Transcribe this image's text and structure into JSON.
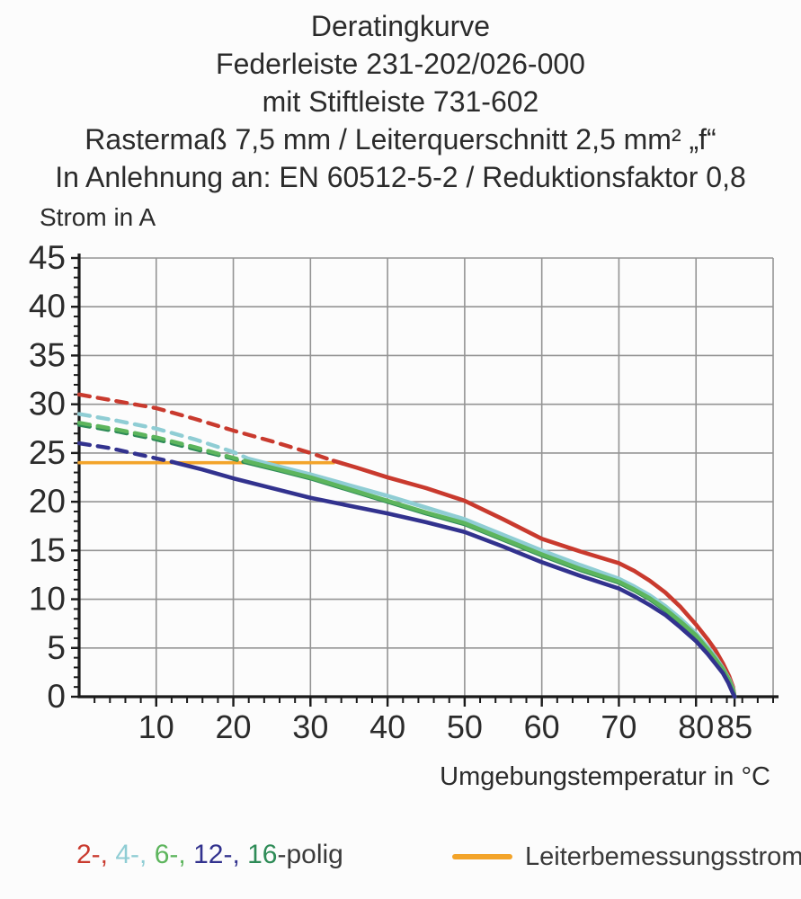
{
  "title_lines": [
    "Deratingkurve",
    "Federleiste 231-202/026-000",
    "mit Stiftleiste 731-602",
    "Rastermaß 7,5 mm / Leiterquerschnitt 2,5 mm² „f“",
    "In Anlehnung an: EN 60512-5-2 / Reduktionsfaktor 0,8"
  ],
  "chart_data": {
    "type": "line",
    "title": "Deratingkurve",
    "xlabel": "Umgebungstemperatur in °C",
    "ylabel": "Strom in A",
    "xlim": [
      0,
      90
    ],
    "ylim": [
      0,
      45
    ],
    "grid": true,
    "x_gridlines": [
      10,
      20,
      30,
      40,
      50,
      60,
      70,
      80,
      90
    ],
    "y_gridlines": [
      5,
      10,
      15,
      20,
      25,
      30,
      35,
      40,
      45
    ],
    "x_tick_labels": [
      10,
      20,
      30,
      40,
      50,
      60,
      70,
      80,
      85
    ],
    "y_tick_labels": [
      0,
      5,
      10,
      15,
      20,
      25,
      30,
      35,
      40,
      45
    ],
    "x_minor_step": 2,
    "y_minor_step": 1,
    "reference_line": {
      "name": "Leiterbemessungsstrom",
      "color": "#f3a42a",
      "y": 24,
      "x_start": 0,
      "x_end": 33
    },
    "series": [
      {
        "name": "2-polig",
        "color": "#c93a2e",
        "dashed": [
          [
            0,
            31
          ],
          [
            5,
            30.3
          ],
          [
            10,
            29.6
          ],
          [
            15,
            28.5
          ],
          [
            20,
            27.3
          ],
          [
            25,
            26.2
          ],
          [
            30,
            25
          ],
          [
            33,
            24.2
          ]
        ],
        "solid": [
          [
            33,
            24.2
          ],
          [
            36,
            23.5
          ],
          [
            40,
            22.5
          ],
          [
            45,
            21.4
          ],
          [
            50,
            20.1
          ],
          [
            55,
            18.2
          ],
          [
            60,
            16.2
          ],
          [
            65,
            14.9
          ],
          [
            70,
            13.7
          ],
          [
            72,
            12.9
          ],
          [
            74,
            11.9
          ],
          [
            76,
            10.7
          ],
          [
            78,
            9.2
          ],
          [
            80,
            7.4
          ],
          [
            81.5,
            5.9
          ],
          [
            82.5,
            4.8
          ],
          [
            83.5,
            3.4
          ],
          [
            84.3,
            2.1
          ],
          [
            84.8,
            1.0
          ],
          [
            85,
            0
          ]
        ]
      },
      {
        "name": "4-polig",
        "color": "#8fcdd4",
        "dashed": [
          [
            0,
            29
          ],
          [
            5,
            28.3
          ],
          [
            10,
            27.5
          ],
          [
            15,
            26.4
          ],
          [
            20,
            25.1
          ],
          [
            22,
            24.4
          ]
        ],
        "solid": [
          [
            22,
            24.4
          ],
          [
            26,
            23.6
          ],
          [
            30,
            22.8
          ],
          [
            35,
            21.7
          ],
          [
            40,
            20.6
          ],
          [
            45,
            19.4
          ],
          [
            50,
            18.2
          ],
          [
            55,
            16.6
          ],
          [
            60,
            15
          ],
          [
            65,
            13.5
          ],
          [
            70,
            12.1
          ],
          [
            72,
            11.3
          ],
          [
            74,
            10.4
          ],
          [
            76,
            9.3
          ],
          [
            78,
            8.0
          ],
          [
            80,
            6.5
          ],
          [
            81.5,
            5.1
          ],
          [
            82.5,
            4.1
          ],
          [
            83.5,
            2.9
          ],
          [
            84.3,
            1.8
          ],
          [
            84.8,
            0.8
          ],
          [
            85,
            0
          ]
        ]
      },
      {
        "name": "16-polig",
        "color": "#2e8b57",
        "dashed": [
          [
            0,
            27.9
          ],
          [
            5,
            27.2
          ],
          [
            10,
            26.4
          ],
          [
            15,
            25.4
          ],
          [
            20,
            24.4
          ],
          [
            21.3,
            24.1
          ]
        ],
        "solid": [
          [
            21.3,
            24.1
          ],
          [
            26,
            23.2
          ],
          [
            30,
            22.4
          ],
          [
            35,
            21.2
          ],
          [
            40,
            20
          ],
          [
            45,
            18.8
          ],
          [
            50,
            17.7
          ],
          [
            55,
            16.1
          ],
          [
            60,
            14.5
          ],
          [
            65,
            13
          ],
          [
            70,
            11.7
          ],
          [
            72,
            10.9
          ],
          [
            74,
            10
          ],
          [
            76,
            8.9
          ],
          [
            78,
            7.6
          ],
          [
            80,
            6.2
          ],
          [
            81.5,
            4.8
          ],
          [
            82.5,
            3.8
          ],
          [
            83.5,
            2.7
          ],
          [
            84.3,
            1.6
          ],
          [
            84.8,
            0.6
          ],
          [
            85,
            0
          ]
        ]
      },
      {
        "name": "6-polig",
        "color": "#5db55d",
        "dashed": [
          [
            0,
            28.1
          ],
          [
            5,
            27.4
          ],
          [
            10,
            26.6
          ],
          [
            15,
            25.6
          ],
          [
            20,
            24.5
          ],
          [
            21.5,
            24.2
          ]
        ],
        "solid": [
          [
            21.5,
            24.2
          ],
          [
            26,
            23.3
          ],
          [
            30,
            22.5
          ],
          [
            35,
            21.3
          ],
          [
            40,
            20.1
          ],
          [
            45,
            18.9
          ],
          [
            50,
            17.8
          ],
          [
            55,
            16.2
          ],
          [
            60,
            14.6
          ],
          [
            65,
            13.1
          ],
          [
            70,
            11.8
          ],
          [
            72,
            11
          ],
          [
            74,
            10.1
          ],
          [
            76,
            9.0
          ],
          [
            78,
            7.7
          ],
          [
            80,
            6.3
          ],
          [
            81.5,
            4.9
          ],
          [
            82.5,
            3.9
          ],
          [
            83.5,
            2.8
          ],
          [
            84.3,
            1.7
          ],
          [
            84.8,
            0.7
          ],
          [
            85,
            0
          ]
        ]
      },
      {
        "name": "12-polig",
        "color": "#32328e",
        "dashed": [
          [
            0,
            26
          ],
          [
            4,
            25.5
          ],
          [
            8,
            24.8
          ],
          [
            12,
            24.1
          ]
        ],
        "solid": [
          [
            12,
            24.1
          ],
          [
            16,
            23.3
          ],
          [
            20,
            22.4
          ],
          [
            25,
            21.4
          ],
          [
            30,
            20.4
          ],
          [
            35,
            19.6
          ],
          [
            40,
            18.8
          ],
          [
            45,
            17.9
          ],
          [
            50,
            16.9
          ],
          [
            55,
            15.4
          ],
          [
            60,
            13.8
          ],
          [
            65,
            12.4
          ],
          [
            70,
            11.1
          ],
          [
            72,
            10.3
          ],
          [
            74,
            9.4
          ],
          [
            76,
            8.4
          ],
          [
            78,
            7.1
          ],
          [
            80,
            5.7
          ],
          [
            81.5,
            4.4
          ],
          [
            82.5,
            3.4
          ],
          [
            83.5,
            2.4
          ],
          [
            84.2,
            1.4
          ],
          [
            84.7,
            0.5
          ],
          [
            85,
            0
          ]
        ]
      }
    ]
  },
  "legend": {
    "parts": [
      {
        "text": "2-, ",
        "color": "#c93a2e"
      },
      {
        "text": "4-, ",
        "color": "#8fcdd4"
      },
      {
        "text": "6-, ",
        "color": "#5db55d"
      },
      {
        "text": "12-, ",
        "color": "#32328e"
      },
      {
        "text": "16",
        "color": "#2e8b57"
      },
      {
        "text": "-polig",
        "color": "#3a3a3a"
      }
    ],
    "reference_label": "Leiterbemessungsstrom",
    "reference_color": "#f3a42a"
  },
  "colors": {
    "grid": "#949494",
    "axis": "#1a1a1a",
    "text": "#2b2b2b"
  }
}
